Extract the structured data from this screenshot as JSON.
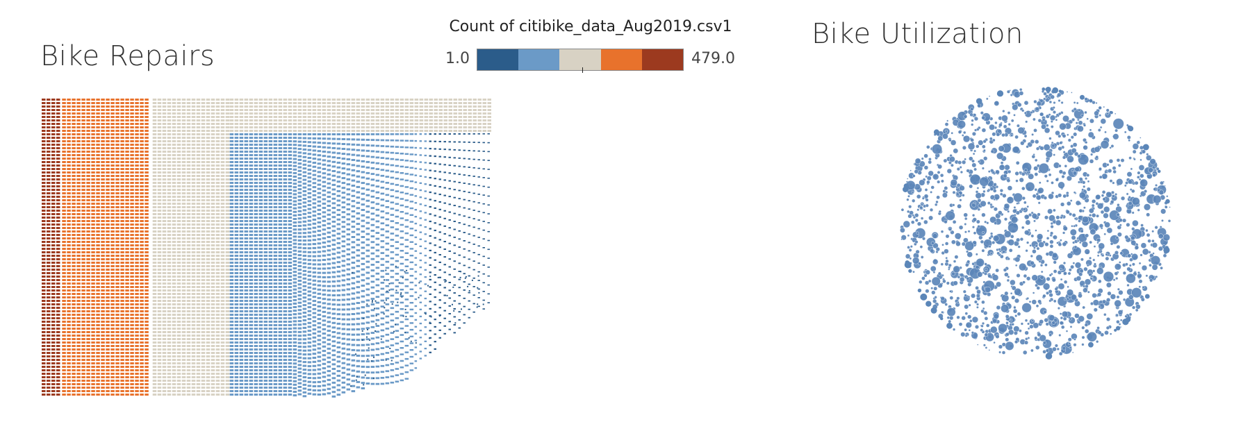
{
  "charts": {
    "repairs": {
      "title": "Bike Repairs"
    },
    "utilization": {
      "title": "Bike Utilization"
    }
  },
  "legend": {
    "title": "Count of citibike_data_Aug2019.csv1",
    "min_label": "1.0",
    "max_label": "479.0",
    "colors": [
      "#2b5c8a",
      "#6b9ac7",
      "#d8d2c4",
      "#e8722c",
      "#9c3a1f"
    ]
  },
  "chart_data": [
    {
      "type": "heatmap",
      "title": "Bike Repairs",
      "color_legend_title": "Count of citibike_data_Aug2019.csv1",
      "color_range": [
        1.0,
        479.0
      ],
      "color_scale": [
        "#2b5c8a",
        "#6b9ac7",
        "#d8d2c4",
        "#e8722c",
        "#9c3a1f"
      ],
      "bands": [
        {
          "color": "#9c3a1f",
          "column_share": 0.045,
          "relative_count": "highest"
        },
        {
          "color": "#e8722c",
          "column_share": 0.2,
          "relative_count": "high"
        },
        {
          "color": "#d8d2c4",
          "column_share": 0.17,
          "relative_count": "middle"
        },
        {
          "color": "#6b9ac7",
          "column_share": 0.44,
          "relative_count": "low"
        },
        {
          "color": "#2b5c8a",
          "column_share": 0.145,
          "relative_count": "lowest"
        }
      ]
    },
    {
      "type": "scatter",
      "subtype": "packed-bubble",
      "title": "Bike Utilization",
      "color": "#5b86b8",
      "shape": "circle"
    }
  ]
}
